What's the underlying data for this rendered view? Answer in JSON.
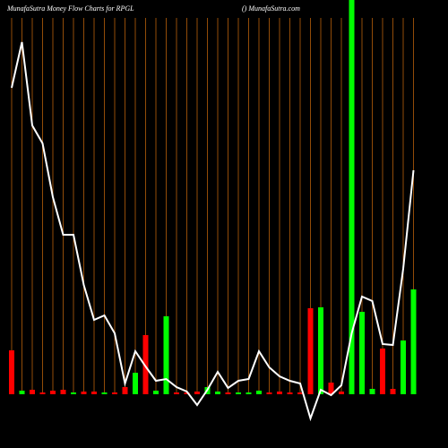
{
  "chart_data": {
    "type": "bar-line",
    "title": "MunafaSutra  Money Flow  Charts for RPGL",
    "subtitle": "() MunafaSutra.com",
    "categories": [
      null,
      null,
      null,
      null,
      null,
      null,
      null,
      null,
      null,
      null,
      null,
      null,
      null,
      null,
      null,
      null,
      null,
      null,
      null,
      null,
      null,
      null,
      null,
      null,
      null,
      null,
      null,
      null,
      null,
      null,
      null,
      null,
      null,
      null,
      null,
      null,
      null,
      null,
      null,
      null
    ],
    "ylim": [
      0,
      440
    ],
    "grid_color": "#b8600a",
    "series": [
      {
        "kind": "bar",
        "colors": [
          "#ff0000",
          "#00ff00",
          "#ff0000",
          "#ff0000",
          "#ff0000",
          "#ff0000",
          "#00ff00",
          "#ff0000",
          "#ff0000",
          "#00ff00",
          "#ff0000",
          "#ff0000",
          "#00ff00",
          "#ff0000",
          "#00ff00",
          "#00ff00",
          "#ff0000",
          "#ff0000",
          "#ff0000",
          "#00ff00",
          "#00ff00",
          "#ff0000",
          "#00ff00",
          "#00ff00",
          "#00ff00",
          "#ff0000",
          "#ff0000",
          "#ff0000",
          "#ff0000",
          "#ff0000",
          "#00ff00",
          "#ff0000",
          "#ff0000",
          "#00ff00",
          "#00ff00",
          "#00ff00",
          "#ff0000",
          "#ff0000",
          "#00ff00",
          "#00ff00"
        ],
        "values": [
          49,
          4,
          5,
          2,
          4,
          5,
          2,
          3,
          3,
          2,
          2,
          8,
          24,
          66,
          4,
          87,
          2,
          2,
          3,
          8,
          3,
          2,
          2,
          2,
          4,
          2,
          3,
          2,
          2,
          96,
          97,
          13,
          3,
          460,
          92,
          6,
          51,
          6,
          60,
          117
        ]
      },
      {
        "kind": "line",
        "color": "#ffffff",
        "values": [
          342,
          393,
          300,
          280,
          220,
          178,
          178,
          122,
          83,
          88,
          68,
          12,
          48,
          31,
          15,
          17,
          8,
          3,
          -12,
          5,
          25,
          7,
          15,
          17,
          48,
          30,
          20,
          15,
          12,
          -27,
          5,
          -1,
          10,
          68,
          109,
          104,
          56,
          55,
          140,
          250
        ]
      }
    ]
  }
}
